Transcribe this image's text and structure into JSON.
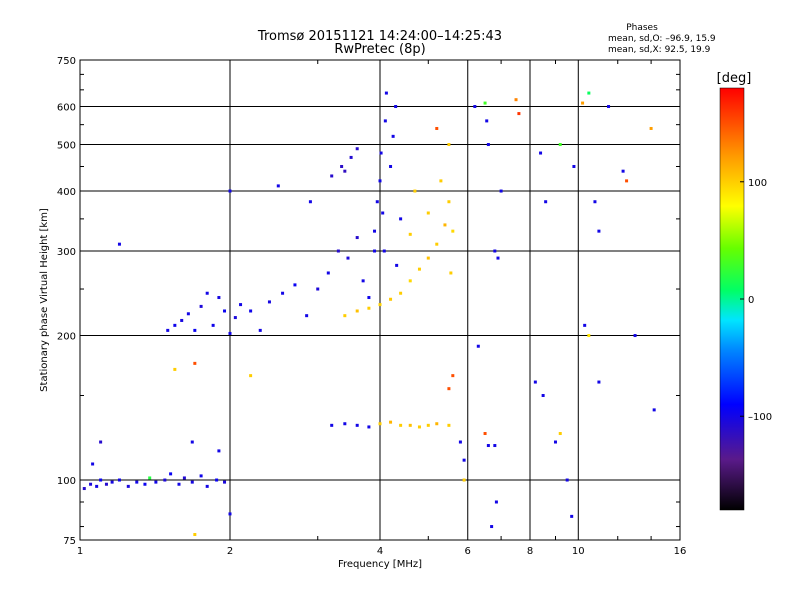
{
  "chart_data": {
    "type": "scatter",
    "title": "Tromsø 20151121 14:24:00–14:25:43",
    "subtitle": "RwPretec (8p)",
    "xlabel": "Frequency [MHz]",
    "ylabel": "Stationary phase Virtual Height [km]",
    "x_scale": "log",
    "y_scale": "log",
    "xlim": [
      1,
      16
    ],
    "ylim": [
      75,
      750
    ],
    "x_ticks": [
      "1",
      "2",
      "4",
      "6",
      "8",
      "10",
      "16"
    ],
    "x_tick_values": [
      1,
      2,
      4,
      6,
      8,
      10,
      16
    ],
    "y_ticks": [
      "75",
      "100",
      "200",
      "300",
      "400",
      "500",
      "600",
      "750"
    ],
    "y_tick_values": [
      75,
      100,
      200,
      300,
      400,
      500,
      600,
      750
    ],
    "grid": true,
    "phases_info": {
      "heading": "Phases",
      "line1": "mean, sd,O: –96.9, 15.9",
      "line2": "mean, sd,X:  92.5, 19.9"
    },
    "colorbar": {
      "label": "[deg]",
      "range": [
        -180,
        180
      ],
      "ticks": [
        "100",
        "0",
        "–100"
      ],
      "tick_values": [
        100,
        0,
        -100
      ]
    },
    "series": [
      {
        "name": "",
        "points": [
          {
            "x": 1.02,
            "y": 96,
            "p": -110
          },
          {
            "x": 1.05,
            "y": 98,
            "p": -105
          },
          {
            "x": 1.08,
            "y": 97,
            "p": -100
          },
          {
            "x": 1.1,
            "y": 100,
            "p": -95
          },
          {
            "x": 1.13,
            "y": 98,
            "p": -110
          },
          {
            "x": 1.16,
            "y": 99,
            "p": -102
          },
          {
            "x": 1.2,
            "y": 100,
            "p": -98
          },
          {
            "x": 1.25,
            "y": 97,
            "p": -104
          },
          {
            "x": 1.3,
            "y": 99,
            "p": -100
          },
          {
            "x": 1.35,
            "y": 98,
            "p": -96
          },
          {
            "x": 1.38,
            "y": 101,
            "p": 20
          },
          {
            "x": 1.42,
            "y": 99,
            "p": -100
          },
          {
            "x": 1.48,
            "y": 100,
            "p": -105
          },
          {
            "x": 1.52,
            "y": 103,
            "p": -95
          },
          {
            "x": 1.58,
            "y": 98,
            "p": -100
          },
          {
            "x": 1.62,
            "y": 101,
            "p": -108
          },
          {
            "x": 1.68,
            "y": 99,
            "p": -102
          },
          {
            "x": 1.75,
            "y": 102,
            "p": -98
          },
          {
            "x": 1.8,
            "y": 97,
            "p": -100
          },
          {
            "x": 1.88,
            "y": 100,
            "p": -95
          },
          {
            "x": 1.95,
            "y": 99,
            "p": -104
          },
          {
            "x": 1.06,
            "y": 108,
            "p": -100
          },
          {
            "x": 1.1,
            "y": 120,
            "p": -110
          },
          {
            "x": 1.68,
            "y": 120,
            "p": -100
          },
          {
            "x": 1.2,
            "y": 310,
            "p": -100
          },
          {
            "x": 1.5,
            "y": 205,
            "p": -100
          },
          {
            "x": 1.55,
            "y": 210,
            "p": -98
          },
          {
            "x": 1.6,
            "y": 215,
            "p": -102
          },
          {
            "x": 1.65,
            "y": 222,
            "p": -100
          },
          {
            "x": 1.7,
            "y": 205,
            "p": -95
          },
          {
            "x": 1.75,
            "y": 230,
            "p": -105
          },
          {
            "x": 1.8,
            "y": 245,
            "p": -100
          },
          {
            "x": 1.85,
            "y": 210,
            "p": -98
          },
          {
            "x": 1.9,
            "y": 240,
            "p": -102
          },
          {
            "x": 1.95,
            "y": 225,
            "p": -96
          },
          {
            "x": 2.0,
            "y": 202,
            "p": -100
          },
          {
            "x": 2.05,
            "y": 218,
            "p": -104
          },
          {
            "x": 2.1,
            "y": 232,
            "p": -100
          },
          {
            "x": 2.2,
            "y": 225,
            "p": -98
          },
          {
            "x": 2.3,
            "y": 205,
            "p": -100
          },
          {
            "x": 2.4,
            "y": 235,
            "p": -102
          },
          {
            "x": 2.55,
            "y": 245,
            "p": -100
          },
          {
            "x": 2.7,
            "y": 255,
            "p": -95
          },
          {
            "x": 2.85,
            "y": 220,
            "p": -100
          },
          {
            "x": 3.0,
            "y": 250,
            "p": -105
          },
          {
            "x": 3.15,
            "y": 270,
            "p": -100
          },
          {
            "x": 3.3,
            "y": 300,
            "p": -110
          },
          {
            "x": 3.45,
            "y": 290,
            "p": -105
          },
          {
            "x": 3.6,
            "y": 320,
            "p": -110
          },
          {
            "x": 3.7,
            "y": 260,
            "p": -100
          },
          {
            "x": 3.8,
            "y": 240,
            "p": -98
          },
          {
            "x": 3.9,
            "y": 300,
            "p": -100
          },
          {
            "x": 2.0,
            "y": 400,
            "p": -100
          },
          {
            "x": 2.5,
            "y": 410,
            "p": -100
          },
          {
            "x": 2.9,
            "y": 380,
            "p": -100
          },
          {
            "x": 3.2,
            "y": 430,
            "p": -110
          },
          {
            "x": 3.35,
            "y": 450,
            "p": -112
          },
          {
            "x": 3.5,
            "y": 470,
            "p": -108
          },
          {
            "x": 3.6,
            "y": 490,
            "p": -110
          },
          {
            "x": 3.4,
            "y": 440,
            "p": -115
          },
          {
            "x": 3.9,
            "y": 330,
            "p": -100
          },
          {
            "x": 3.95,
            "y": 380,
            "p": -100
          },
          {
            "x": 4.0,
            "y": 420,
            "p": -98
          },
          {
            "x": 4.02,
            "y": 480,
            "p": -100
          },
          {
            "x": 4.05,
            "y": 360,
            "p": -100
          },
          {
            "x": 4.08,
            "y": 300,
            "p": -100
          },
          {
            "x": 4.1,
            "y": 560,
            "p": -100
          },
          {
            "x": 4.12,
            "y": 640,
            "p": -100
          },
          {
            "x": 4.2,
            "y": 450,
            "p": -100
          },
          {
            "x": 4.25,
            "y": 520,
            "p": -100
          },
          {
            "x": 4.3,
            "y": 600,
            "p": -100
          },
          {
            "x": 4.32,
            "y": 280,
            "p": -100
          },
          {
            "x": 4.4,
            "y": 350,
            "p": -100
          },
          {
            "x": 3.4,
            "y": 220,
            "p": 100
          },
          {
            "x": 3.6,
            "y": 225,
            "p": 105
          },
          {
            "x": 3.8,
            "y": 228,
            "p": 100
          },
          {
            "x": 4.0,
            "y": 232,
            "p": 98
          },
          {
            "x": 4.2,
            "y": 238,
            "p": 102
          },
          {
            "x": 4.4,
            "y": 245,
            "p": 100
          },
          {
            "x": 4.6,
            "y": 260,
            "p": 95
          },
          {
            "x": 4.8,
            "y": 275,
            "p": 100
          },
          {
            "x": 5.0,
            "y": 290,
            "p": 105
          },
          {
            "x": 5.2,
            "y": 310,
            "p": 100
          },
          {
            "x": 5.4,
            "y": 340,
            "p": 110
          },
          {
            "x": 5.5,
            "y": 380,
            "p": 100
          },
          {
            "x": 5.6,
            "y": 330,
            "p": 95
          },
          {
            "x": 5.55,
            "y": 270,
            "p": 100
          },
          {
            "x": 5.0,
            "y": 360,
            "p": 100
          },
          {
            "x": 4.7,
            "y": 400,
            "p": 100
          },
          {
            "x": 5.3,
            "y": 420,
            "p": 100
          },
          {
            "x": 4.6,
            "y": 325,
            "p": 100
          },
          {
            "x": 5.5,
            "y": 500,
            "p": 100
          },
          {
            "x": 5.2,
            "y": 540,
            "p": 150
          },
          {
            "x": 3.2,
            "y": 130,
            "p": -100
          },
          {
            "x": 3.4,
            "y": 131,
            "p": -100
          },
          {
            "x": 3.6,
            "y": 130,
            "p": -100
          },
          {
            "x": 3.8,
            "y": 129,
            "p": -100
          },
          {
            "x": 4.0,
            "y": 131,
            "p": 100
          },
          {
            "x": 4.2,
            "y": 132,
            "p": 110
          },
          {
            "x": 4.4,
            "y": 130,
            "p": 100
          },
          {
            "x": 4.6,
            "y": 130,
            "p": 105
          },
          {
            "x": 4.8,
            "y": 129,
            "p": 100
          },
          {
            "x": 5.0,
            "y": 130,
            "p": 100
          },
          {
            "x": 5.2,
            "y": 131,
            "p": 110
          },
          {
            "x": 5.5,
            "y": 130,
            "p": 100
          },
          {
            "x": 6.2,
            "y": 600,
            "p": -100
          },
          {
            "x": 6.5,
            "y": 610,
            "p": 30
          },
          {
            "x": 6.55,
            "y": 560,
            "p": -100
          },
          {
            "x": 6.6,
            "y": 500,
            "p": -100
          },
          {
            "x": 6.8,
            "y": 300,
            "p": -100
          },
          {
            "x": 6.9,
            "y": 290,
            "p": -100
          },
          {
            "x": 7.0,
            "y": 400,
            "p": -100
          },
          {
            "x": 7.5,
            "y": 620,
            "p": 130
          },
          {
            "x": 7.6,
            "y": 580,
            "p": 160
          },
          {
            "x": 8.4,
            "y": 480,
            "p": -100
          },
          {
            "x": 8.6,
            "y": 380,
            "p": -100
          },
          {
            "x": 9.2,
            "y": 500,
            "p": 30
          },
          {
            "x": 9.8,
            "y": 450,
            "p": -100
          },
          {
            "x": 10.2,
            "y": 610,
            "p": 120
          },
          {
            "x": 10.5,
            "y": 640,
            "p": 10
          },
          {
            "x": 10.8,
            "y": 380,
            "p": -100
          },
          {
            "x": 11.0,
            "y": 330,
            "p": -100
          },
          {
            "x": 11.5,
            "y": 600,
            "p": -100
          },
          {
            "x": 12.3,
            "y": 440,
            "p": -100
          },
          {
            "x": 12.5,
            "y": 420,
            "p": 150
          },
          {
            "x": 13.0,
            "y": 200,
            "p": -100
          },
          {
            "x": 14.0,
            "y": 540,
            "p": 120
          },
          {
            "x": 14.2,
            "y": 140,
            "p": -100
          },
          {
            "x": 6.3,
            "y": 190,
            "p": -100
          },
          {
            "x": 6.6,
            "y": 118,
            "p": -100
          },
          {
            "x": 6.8,
            "y": 118,
            "p": -100
          },
          {
            "x": 6.5,
            "y": 125,
            "p": 150
          },
          {
            "x": 6.85,
            "y": 90,
            "p": -100
          },
          {
            "x": 6.7,
            "y": 80,
            "p": -100
          },
          {
            "x": 8.2,
            "y": 160,
            "p": -100
          },
          {
            "x": 8.5,
            "y": 150,
            "p": -100
          },
          {
            "x": 9.0,
            "y": 120,
            "p": -100
          },
          {
            "x": 9.2,
            "y": 125,
            "p": 100
          },
          {
            "x": 9.5,
            "y": 100,
            "p": -100
          },
          {
            "x": 9.7,
            "y": 84,
            "p": -100
          },
          {
            "x": 10.5,
            "y": 200,
            "p": 90
          },
          {
            "x": 10.3,
            "y": 210,
            "p": -100
          },
          {
            "x": 11.0,
            "y": 160,
            "p": -100
          },
          {
            "x": 1.55,
            "y": 170,
            "p": 100
          },
          {
            "x": 1.7,
            "y": 175,
            "p": 150
          },
          {
            "x": 1.9,
            "y": 115,
            "p": -100
          },
          {
            "x": 2.0,
            "y": 85,
            "p": -100
          },
          {
            "x": 1.7,
            "y": 77,
            "p": 100
          },
          {
            "x": 2.2,
            "y": 165,
            "p": 100
          },
          {
            "x": 5.5,
            "y": 155,
            "p": 150
          },
          {
            "x": 5.6,
            "y": 165,
            "p": 150
          },
          {
            "x": 5.9,
            "y": 110,
            "p": -100
          },
          {
            "x": 5.8,
            "y": 120,
            "p": -100
          },
          {
            "x": 5.9,
            "y": 100,
            "p": 100
          }
        ]
      }
    ]
  }
}
